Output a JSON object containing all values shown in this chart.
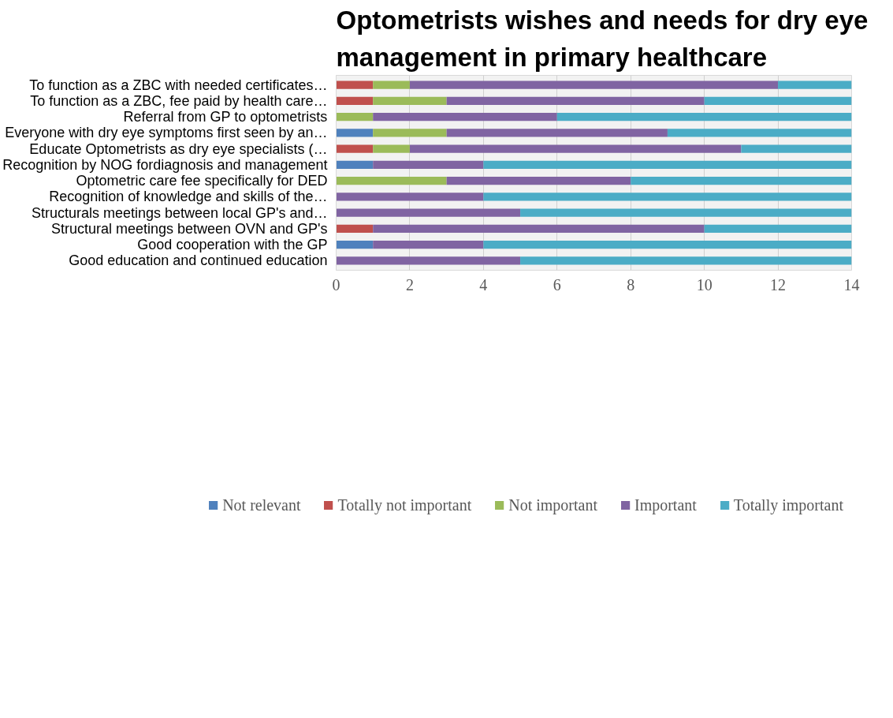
{
  "chart_data": {
    "type": "bar",
    "orientation": "horizontal",
    "stacked": true,
    "title": "Optometrists wishes and needs for dry eye management in primary healthcare",
    "categories": [
      "To function as a ZBC with needed certificates…",
      "To function as a ZBC, fee paid by health care…",
      "Referral from GP to optometrists",
      "Everyone with dry eye symptoms first seen by an…",
      "Educate Optometrists as dry eye specialists (…",
      "Recognition by NOG fordiagnosis and management",
      "Optometric care fee specifically for DED",
      "Recognition of knowledge and skills of the…",
      "Structurals meetings between local GP's and…",
      "Structural meetings between OVN and GP's",
      "Good cooperation with the GP",
      "Good education and continued education"
    ],
    "series": [
      {
        "name": "Not relevant",
        "color": "#4f81bd",
        "values": [
          0,
          0,
          0,
          1,
          0,
          1,
          0,
          0,
          0,
          0,
          1,
          0
        ]
      },
      {
        "name": "Totally not important",
        "color": "#c0504d",
        "values": [
          1,
          1,
          0,
          0,
          1,
          0,
          0,
          0,
          0,
          1,
          0,
          0
        ]
      },
      {
        "name": "Not important",
        "color": "#9bbb59",
        "values": [
          1,
          2,
          1,
          2,
          1,
          0,
          3,
          0,
          0,
          0,
          0,
          0
        ]
      },
      {
        "name": "Important",
        "color": "#8064a2",
        "values": [
          10,
          7,
          5,
          6,
          9,
          3,
          5,
          4,
          5,
          9,
          3,
          5
        ]
      },
      {
        "name": "Totally important",
        "color": "#4bacc6",
        "values": [
          2,
          4,
          8,
          5,
          3,
          10,
          6,
          10,
          9,
          4,
          10,
          9
        ]
      }
    ],
    "xlim": [
      0,
      14
    ],
    "xticks": [
      0,
      2,
      4,
      6,
      8,
      10,
      12,
      14
    ],
    "grid": "x",
    "legend": "bottom"
  }
}
